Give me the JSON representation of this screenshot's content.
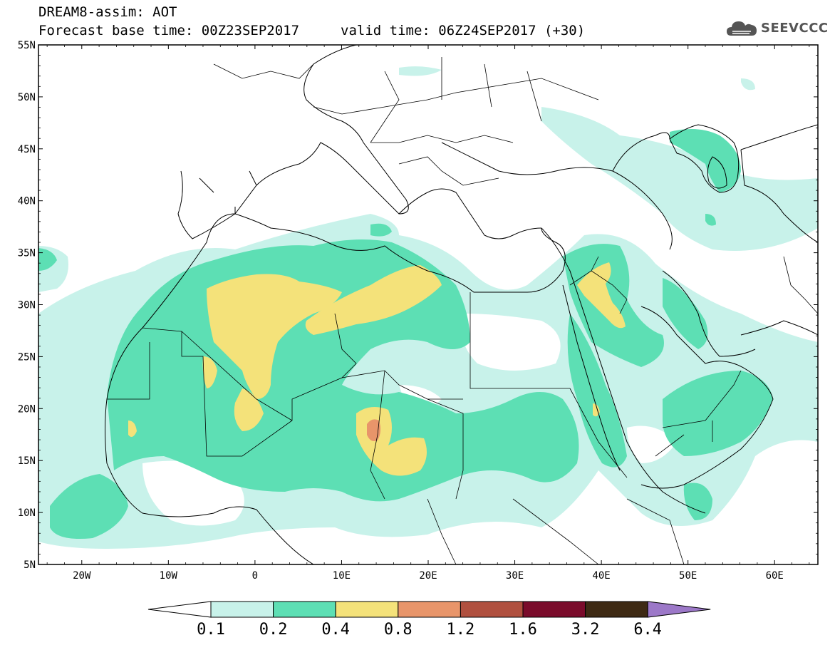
{
  "header": {
    "title_line1": "DREAM8-assim: AOT",
    "title_line2": "Forecast base time: 00Z23SEP2017",
    "valid_time": "valid time: 06Z24SEP2017 (+30)"
  },
  "logo": {
    "text": "SEEVCCC",
    "icon": "cloud-icon"
  },
  "map": {
    "lat_labels": [
      "55N",
      "50N",
      "45N",
      "40N",
      "35N",
      "30N",
      "25N",
      "20N",
      "15N",
      "10N",
      "5N"
    ],
    "lon_labels": [
      "20W",
      "10W",
      "0",
      "10E",
      "20E",
      "30E",
      "40E",
      "50E",
      "60E"
    ],
    "lon_range": [
      -25,
      65
    ],
    "lat_range": [
      5,
      55
    ]
  },
  "colorbar": {
    "labels": [
      "0.1",
      "0.2",
      "0.4",
      "0.8",
      "1.2",
      "1.6",
      "3.2",
      "6.4"
    ],
    "colors": [
      "#ffffff",
      "#c8f2ea",
      "#5ddfb4",
      "#f4e27a",
      "#e8956a",
      "#b0503f",
      "#7a0b2b",
      "#3e2a14",
      "#9c78c8"
    ]
  },
  "palette": {
    "aot_01_02": "#c8f2ea",
    "aot_02_04": "#5ddfb4",
    "aot_04_08": "#f4e27a",
    "aot_08_12": "#e8956a"
  }
}
